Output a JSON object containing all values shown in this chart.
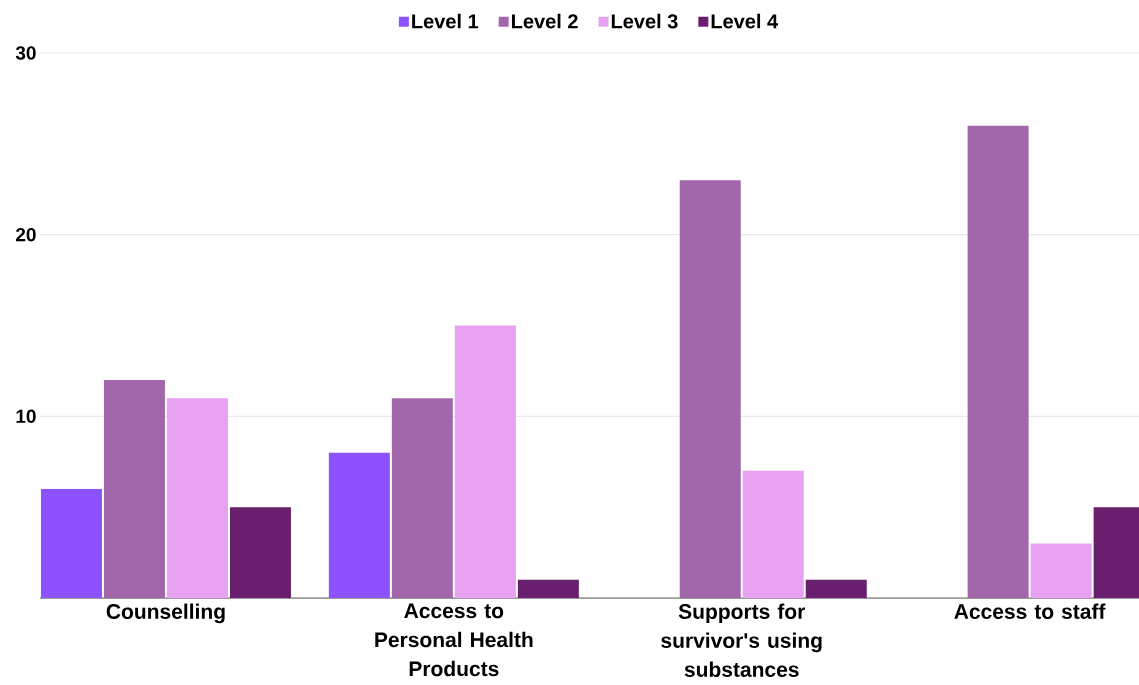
{
  "chart_data": {
    "type": "bar",
    "categories": [
      "Counselling",
      "Access to Personal Health Products",
      "Supports for survivor's using substances",
      "Access to staff"
    ],
    "series": [
      {
        "name": "Level 1",
        "color": "#8c52ff",
        "values": [
          6,
          8,
          0,
          0
        ]
      },
      {
        "name": "Level 2",
        "color": "#a267ab",
        "values": [
          12,
          11,
          23,
          26
        ]
      },
      {
        "name": "Level 3",
        "color": "#e8a0f0",
        "values": [
          11,
          15,
          7,
          3
        ]
      },
      {
        "name": "Level 4",
        "color": "#6a1e6e",
        "values": [
          5,
          1,
          1,
          5
        ]
      }
    ],
    "ylim": [
      0,
      30
    ],
    "yticks": [
      {
        "value": 0,
        "label": null
      },
      10,
      20,
      30
    ],
    "grid": "y",
    "legend": "top"
  }
}
